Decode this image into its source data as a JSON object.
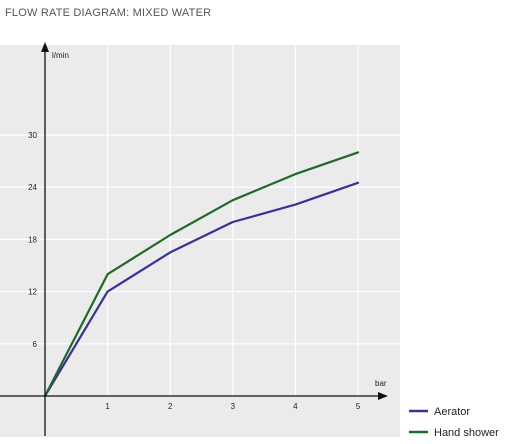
{
  "title": "FLOW RATE DIAGRAM: MIXED WATER",
  "chart_data": {
    "type": "line",
    "xlabel": "bar",
    "ylabel": "l/min",
    "x": [
      0,
      1,
      2,
      3,
      4,
      5
    ],
    "xlim": [
      0,
      5.5
    ],
    "ylim": [
      0,
      30
    ],
    "x_ticks": [
      "1",
      "2",
      "3",
      "4",
      "5"
    ],
    "y_ticks": [
      "6",
      "12",
      "18",
      "24",
      "30"
    ],
    "grid": true,
    "legend_position": "bottom-right",
    "series": [
      {
        "name": "Aerator",
        "color": "#3a3196",
        "values": [
          0,
          12,
          16.5,
          20,
          22,
          24.5
        ]
      },
      {
        "name": "Hand shower",
        "color": "#1e6b27",
        "values": [
          0,
          14,
          18.5,
          22.5,
          25.5,
          28
        ]
      }
    ],
    "background_color": "#ebebeb",
    "grid_color": "#ffffff",
    "axis_color": "#111111"
  }
}
